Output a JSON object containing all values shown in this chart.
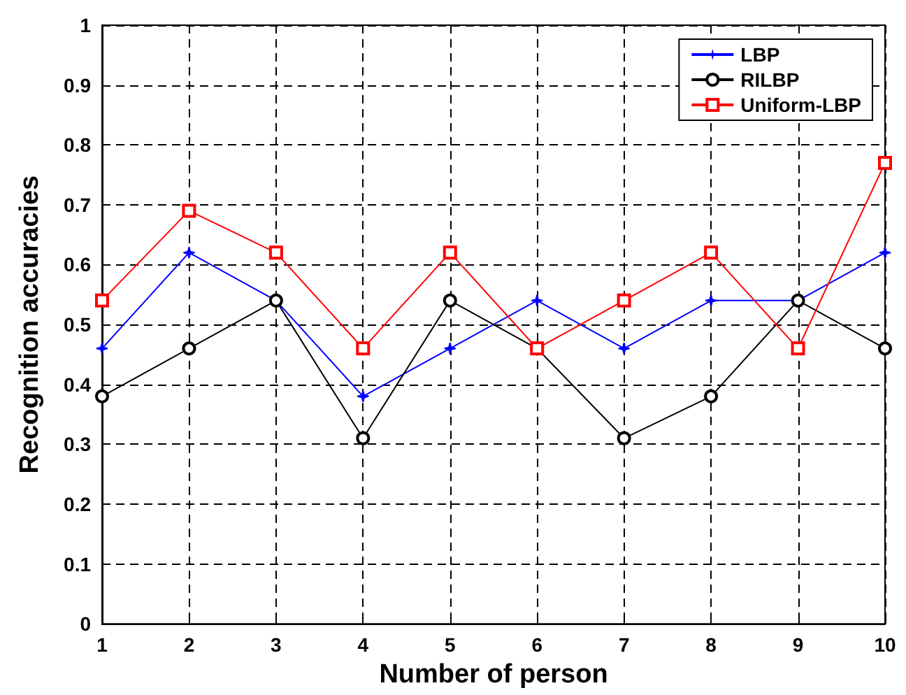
{
  "chart_data": {
    "type": "line",
    "xlabel": "Number of person",
    "ylabel": "Recognition accuracies",
    "x": [
      1,
      2,
      3,
      4,
      5,
      6,
      7,
      8,
      9,
      10
    ],
    "series": [
      {
        "name": "LBP",
        "color": "#0000ff",
        "marker": "star",
        "values": [
          0.46,
          0.62,
          0.54,
          0.38,
          0.46,
          0.54,
          0.46,
          0.54,
          0.54,
          0.62
        ]
      },
      {
        "name": "RILBP",
        "color": "#000000",
        "marker": "circle",
        "values": [
          0.38,
          0.46,
          0.54,
          0.31,
          0.54,
          0.46,
          0.31,
          0.38,
          0.54,
          0.46
        ]
      },
      {
        "name": "Uniform-LBP",
        "color": "#ff0000",
        "marker": "square",
        "values": [
          0.54,
          0.69,
          0.62,
          0.46,
          0.62,
          0.46,
          0.54,
          0.62,
          0.46,
          0.77
        ]
      }
    ],
    "xlim": [
      1,
      10
    ],
    "xticks": [
      1,
      2,
      3,
      4,
      5,
      6,
      7,
      8,
      9,
      10
    ],
    "ylim": [
      0,
      1
    ],
    "yticks": [
      0,
      0.1,
      0.2,
      0.3,
      0.4,
      0.5,
      0.6,
      0.7,
      0.8,
      0.9,
      1
    ],
    "grid": true,
    "legend": "top right",
    "line_style": "solid"
  }
}
